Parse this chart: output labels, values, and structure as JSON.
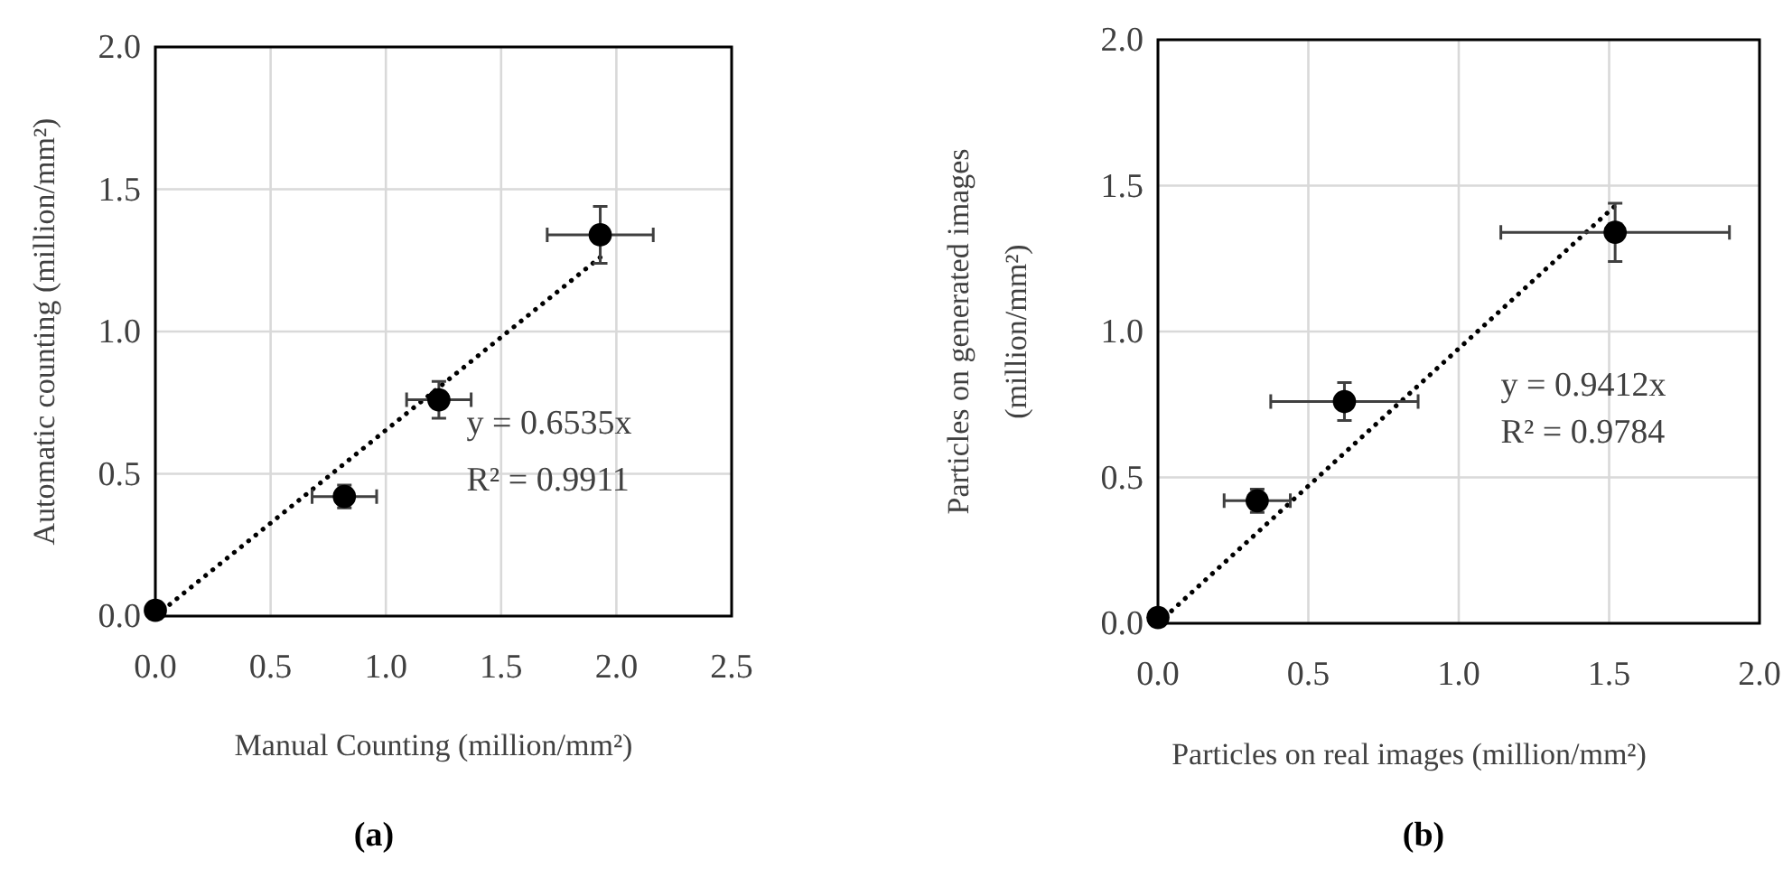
{
  "chart_data": [
    {
      "type": "scatter",
      "xlabel": "Manual Counting (million/mm²)",
      "ylabel": "Automatic counting (million/mm²)",
      "xlim": [
        0,
        2.5
      ],
      "xticks": [
        {
          "value": 0,
          "label": "0.0"
        },
        {
          "value": 0.5,
          "label": "0.5"
        },
        {
          "value": 1,
          "label": "1.0"
        },
        {
          "value": 1.5,
          "label": "1.5"
        },
        {
          "value": 2,
          "label": "2.0"
        },
        {
          "value": 2.5,
          "label": "2.5"
        }
      ],
      "ylim": [
        0,
        2
      ],
      "yticks": [
        {
          "value": 0,
          "label": "0.0"
        },
        {
          "value": 0.5,
          "label": "0.5"
        },
        {
          "value": 1,
          "label": "1.0"
        },
        {
          "value": 1.5,
          "label": "1.5"
        },
        {
          "value": 2,
          "label": "2.0"
        }
      ],
      "grid": true,
      "annotations": [
        "y = 0.6535x",
        "R² = 0.9911",
        "(a)"
      ],
      "series": [
        {
          "type": "line",
          "color": "#000000",
          "marker": "none",
          "line_style": "dotted",
          "x": [
            0,
            1.93
          ],
          "values": [
            0,
            1.261
          ]
        },
        {
          "type": "scatter",
          "color": "#000000",
          "marker": "circle",
          "x": [
            0,
            0.82,
            1.23,
            1.93
          ],
          "values": [
            0.02,
            0.42,
            0.76,
            1.34
          ],
          "errors": [
            null,
            0.04,
            0.065,
            0.1
          ],
          "xerrors": [
            null,
            0.14,
            0.14,
            0.23
          ]
        }
      ]
    },
    {
      "type": "scatter",
      "xlabel": "Particles on real images (million/mm²)",
      "ylabel": "Particles on generated images\n(million/mm²)",
      "xlim": [
        0,
        2
      ],
      "xticks": [
        {
          "value": 0,
          "label": "0.0"
        },
        {
          "value": 0.5,
          "label": "0.5"
        },
        {
          "value": 1,
          "label": "1.0"
        },
        {
          "value": 1.5,
          "label": "1.5"
        },
        {
          "value": 2,
          "label": "2.0"
        }
      ],
      "ylim": [
        0,
        2
      ],
      "yticks": [
        {
          "value": 0,
          "label": "0.0"
        },
        {
          "value": 0.5,
          "label": "0.5"
        },
        {
          "value": 1,
          "label": "1.0"
        },
        {
          "value": 1.5,
          "label": "1.5"
        },
        {
          "value": 2,
          "label": "2.0"
        }
      ],
      "grid": true,
      "annotations": [
        "y = 0.9412x",
        "R² = 0.9784",
        "(b)"
      ],
      "series": [
        {
          "type": "line",
          "color": "#000000",
          "marker": "none",
          "line_style": "dotted",
          "x": [
            0,
            1.52
          ],
          "values": [
            0,
            1.431
          ]
        },
        {
          "type": "scatter",
          "color": "#000000",
          "marker": "circle",
          "x": [
            0,
            0.33,
            0.62,
            1.52
          ],
          "values": [
            0.02,
            0.42,
            0.76,
            1.34
          ],
          "errors": [
            null,
            0.04,
            0.065,
            0.1
          ],
          "xerrors": [
            null,
            0.11,
            0.245,
            0.38
          ]
        }
      ]
    }
  ]
}
